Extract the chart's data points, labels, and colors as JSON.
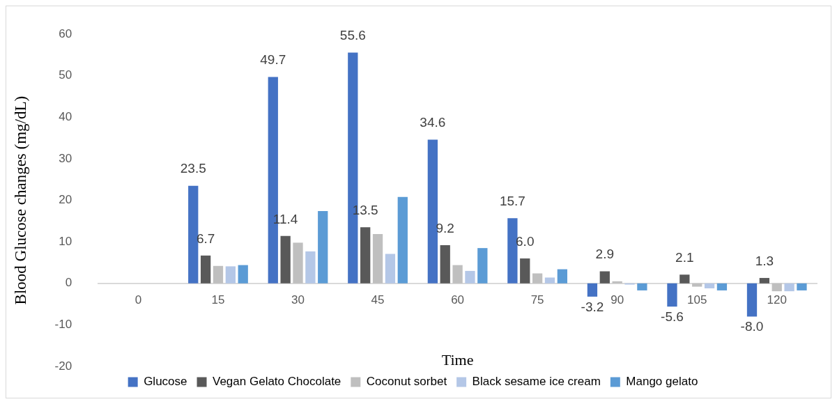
{
  "chart_data": {
    "type": "bar",
    "xlabel": "Time",
    "ylabel": "Blood Glucose changes (mg/dL)",
    "categories": [
      "0",
      "15",
      "30",
      "45",
      "60",
      "75",
      "90",
      "105",
      "120"
    ],
    "series": [
      {
        "name": "Glucose",
        "color": "#4472c4",
        "values": [
          0,
          23.5,
          49.7,
          55.6,
          34.6,
          15.7,
          -3.2,
          -5.6,
          -8.0
        ],
        "value_labels": [
          null,
          "23.5",
          "49.7",
          "55.6",
          "34.6",
          "15.7",
          "-3.2",
          "-5.6",
          "-8.0"
        ]
      },
      {
        "name": "Vegan Gelato Chocolate",
        "color": "#595959",
        "values": [
          0,
          6.7,
          11.4,
          13.5,
          9.2,
          6.0,
          2.9,
          2.1,
          1.3
        ],
        "value_labels": [
          null,
          "6.7",
          "11.4",
          "13.5",
          "9.2",
          "6.0",
          "2.9",
          "2.1",
          "1.3"
        ]
      },
      {
        "name": "Coconut sorbet",
        "color": "#bfbfbf",
        "values": [
          0,
          4.2,
          9.8,
          11.9,
          4.4,
          2.4,
          0.5,
          -0.8,
          -1.9
        ]
      },
      {
        "name": "Black sesame ice cream",
        "color": "#b4c7e7",
        "values": [
          0,
          4.1,
          7.7,
          7.1,
          3.0,
          1.4,
          -0.3,
          -1.2,
          -1.9
        ]
      },
      {
        "name": "Mango gelato",
        "color": "#5b9bd5",
        "values": [
          0,
          4.4,
          17.4,
          20.8,
          8.5,
          3.4,
          -1.7,
          -1.7,
          -1.7
        ]
      }
    ],
    "ylim": [
      -20,
      60
    ],
    "yticks": [
      -20,
      -10,
      0,
      10,
      20,
      30,
      40,
      50,
      60
    ],
    "grid": false,
    "legend": "bottom"
  }
}
